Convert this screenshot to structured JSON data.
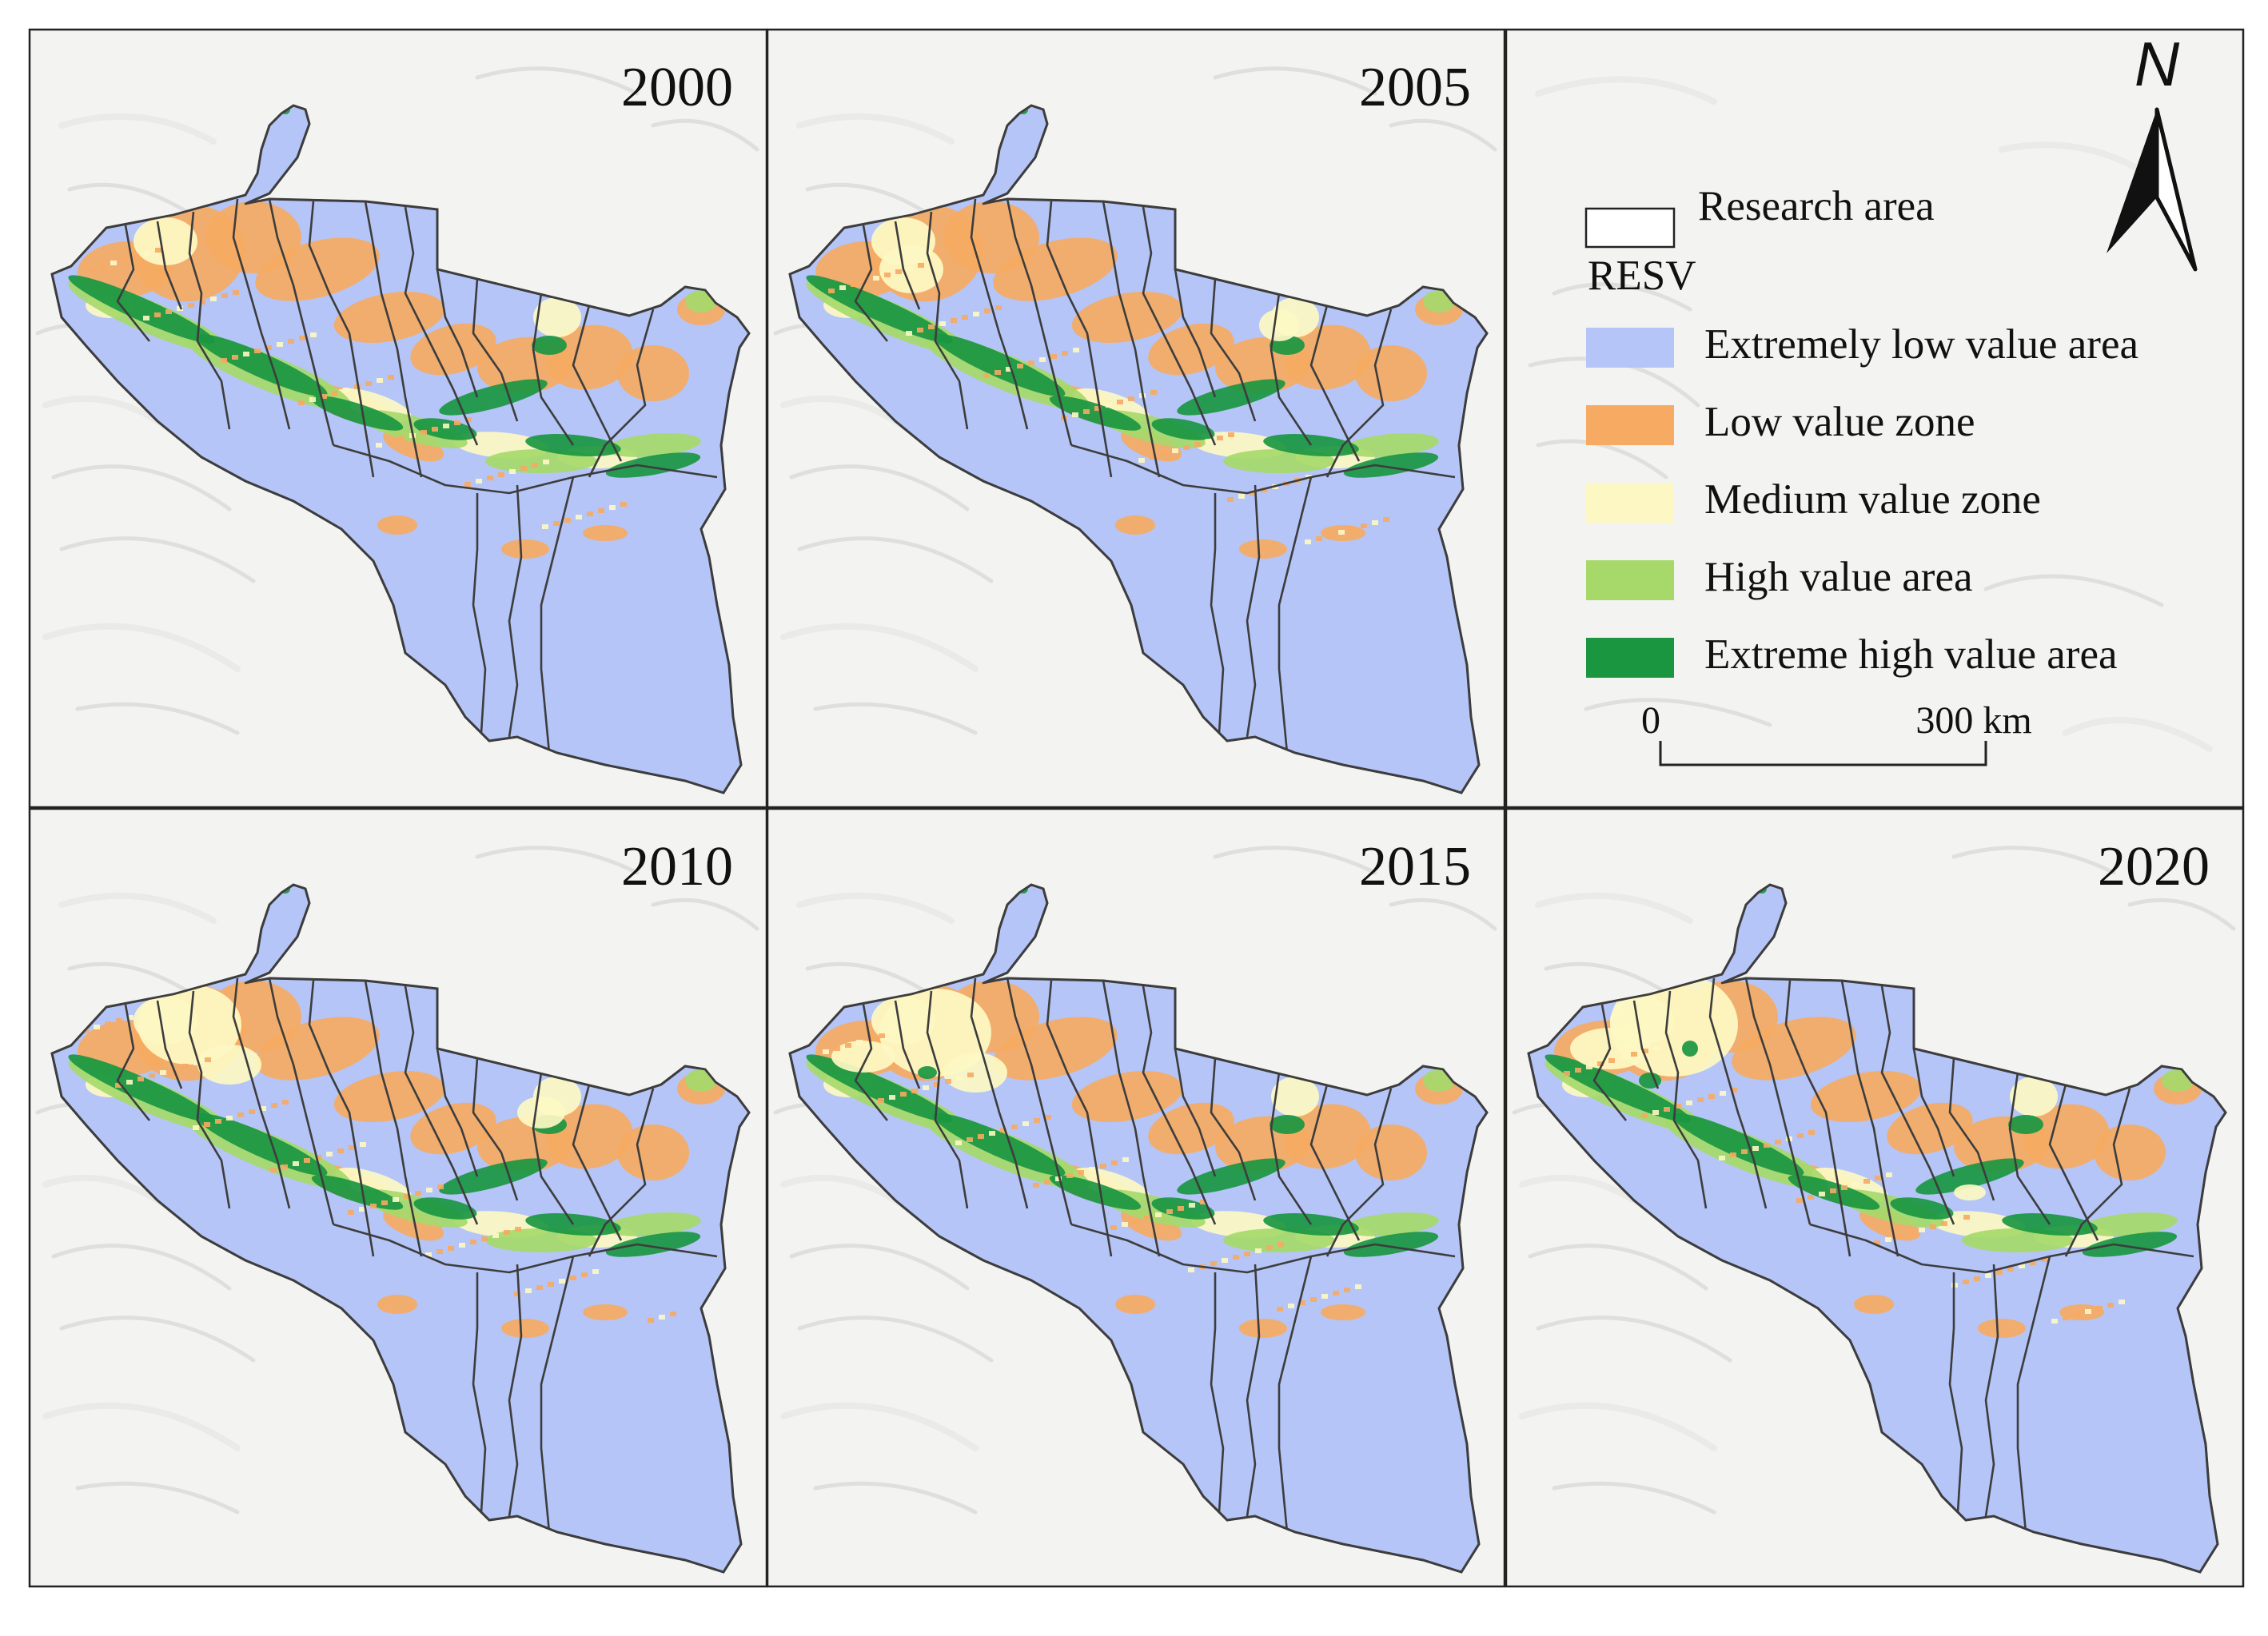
{
  "panels": [
    {
      "year": "2000"
    },
    {
      "year": "2005"
    },
    {
      "year": "2010"
    },
    {
      "year": "2015"
    },
    {
      "year": "2020"
    }
  ],
  "legend": {
    "outline_label": "Research area",
    "title": "RESV",
    "classes": [
      {
        "label": "Extremely low value area",
        "color": "#b5c5f7"
      },
      {
        "label": "Low value zone",
        "color": "#f6aa62"
      },
      {
        "label": "Medium value zone",
        "color": "#fdf8c3"
      },
      {
        "label": "High value area",
        "color": "#a6d96a"
      },
      {
        "label": "Extreme high value area",
        "color": "#1a9641"
      }
    ]
  },
  "scale_bar": {
    "start": "0",
    "end": "300 km"
  },
  "north_arrow": {
    "letter": "N",
    "icon": "north-arrow-icon"
  },
  "colors": {
    "hillshade": "#f3f3f2",
    "boundary": "#3d3d3d"
  }
}
